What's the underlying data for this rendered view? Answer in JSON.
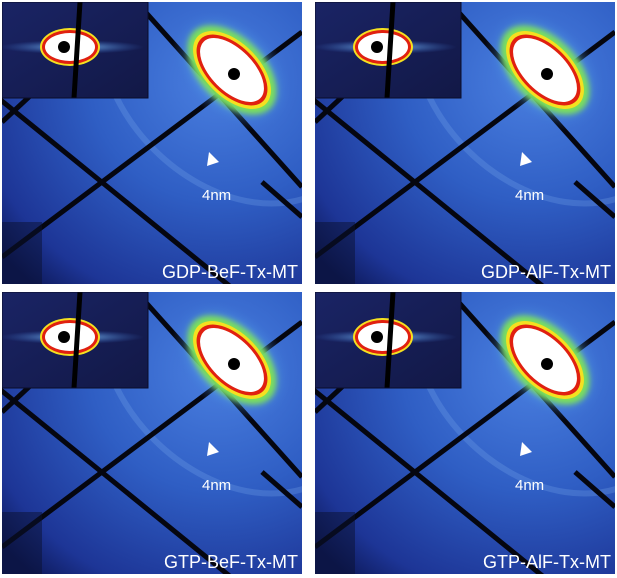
{
  "panels": [
    {
      "label": "GDP-BeF-Tx-MT",
      "annotation": "4nm"
    },
    {
      "label": "GDP-AlF-Tx-MT",
      "annotation": "4nm"
    },
    {
      "label": "GTP-BeF-Tx-MT",
      "annotation": "4nm"
    },
    {
      "label": "GTP-AlF-Tx-MT",
      "annotation": "4nm"
    }
  ]
}
